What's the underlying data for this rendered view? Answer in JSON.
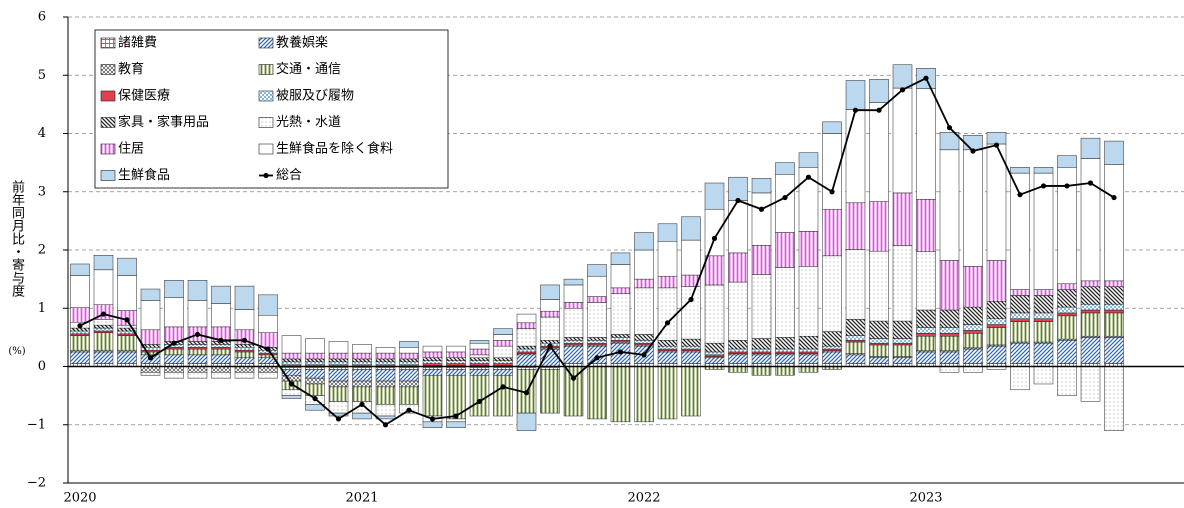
{
  "chart_data": {
    "type": "stacked-bar-line",
    "ylabel": "前年同月比・寄与度",
    "yunit": "(%)",
    "categories": [
      "2020",
      null,
      null,
      null,
      null,
      null,
      null,
      null,
      null,
      null,
      null,
      null,
      "2021",
      null,
      null,
      null,
      null,
      null,
      null,
      null,
      null,
      null,
      null,
      null,
      "2022",
      null,
      null,
      null,
      null,
      null,
      null,
      null,
      null,
      null,
      null,
      null,
      "2023",
      null,
      null,
      null,
      null,
      null,
      null,
      null,
      null
    ],
    "ylim": [
      -2,
      6
    ],
    "yticks": [
      {
        "value": -2,
        "label": "−2"
      },
      {
        "value": -1,
        "label": "−1"
      },
      0,
      1,
      2,
      3,
      4,
      5,
      6
    ],
    "grid": true,
    "legend": "top-left",
    "series": [
      {
        "name": "諸雑費",
        "color": "#d85070",
        "pattern": "grid",
        "values": [
          0.05,
          0.05,
          0.05,
          0.05,
          0.05,
          0.05,
          0.05,
          0.05,
          0.05,
          -0.05,
          -0.05,
          -0.05,
          -0.05,
          -0.05,
          -0.05,
          -0.05,
          -0.05,
          -0.05,
          -0.05,
          -0.05,
          -0.05,
          0.05,
          0.05,
          0.05,
          0.05,
          0.05,
          0.05,
          0.05,
          0.05,
          0.05,
          0.05,
          0.05,
          0.05,
          0.05,
          0.05,
          0.05,
          0.05,
          0.05,
          0.05,
          0.05,
          0.05,
          0.05,
          0.05,
          0.05,
          0.05
        ]
      },
      {
        "name": "教養娯楽",
        "color": "#2f66aa",
        "pattern": "diag",
        "values": [
          0.2,
          0.2,
          0.2,
          0.15,
          0.15,
          0.15,
          0.15,
          0.1,
          0.1,
          -0.1,
          -0.15,
          -0.2,
          -0.2,
          -0.2,
          -0.2,
          -0.1,
          -0.1,
          -0.1,
          -0.1,
          0.2,
          0.3,
          0.3,
          0.3,
          0.35,
          0.3,
          0.2,
          0.2,
          0.1,
          0.15,
          0.15,
          0.15,
          0.15,
          0.2,
          0.15,
          0.1,
          0.1,
          0.2,
          0.2,
          0.25,
          0.3,
          0.35,
          0.35,
          0.4,
          0.45,
          0.45
        ]
      },
      {
        "name": "教育",
        "color": "#333333",
        "pattern": "cross",
        "values": [
          0.03,
          0.03,
          0.03,
          -0.1,
          -0.1,
          -0.1,
          -0.1,
          -0.1,
          -0.1,
          -0.1,
          -0.1,
          -0.1,
          -0.1,
          -0.1,
          -0.1,
          0.02,
          0.02,
          0.02,
          0.02,
          0.02,
          0.02,
          0.02,
          0.02,
          0.02,
          0.02,
          0.02,
          0.02,
          0.02,
          0.02,
          0.02,
          0.02,
          0.02,
          0.02,
          0.02,
          0.02,
          0.02,
          0.02,
          0.02,
          0.02,
          0.02,
          0.02,
          0.02,
          0.02,
          0.02,
          0.02
        ]
      },
      {
        "name": "交通・通信",
        "color": "#5f7f20",
        "pattern": "vstripe",
        "values": [
          0.25,
          0.3,
          0.25,
          0.05,
          0.1,
          0.1,
          0.1,
          0.1,
          0.05,
          -0.15,
          -0.2,
          -0.25,
          -0.25,
          -0.3,
          -0.3,
          -0.7,
          -0.75,
          -0.7,
          -0.7,
          -0.75,
          -0.75,
          -0.85,
          -0.9,
          -0.95,
          -0.95,
          -0.9,
          -0.85,
          -0.05,
          -0.1,
          -0.15,
          -0.15,
          -0.1,
          -0.05,
          0.2,
          0.2,
          0.2,
          0.25,
          0.25,
          0.25,
          0.3,
          0.35,
          0.35,
          0.4,
          0.4,
          0.4
        ]
      },
      {
        "name": "保健医療",
        "color": "#e04050",
        "pattern": "solid",
        "values": [
          0.03,
          0.03,
          0.03,
          0.03,
          0.03,
          0.03,
          0.03,
          0.03,
          0.03,
          0.03,
          0.03,
          0.03,
          0.03,
          0.03,
          0.03,
          0.03,
          0.03,
          0.03,
          0.03,
          0.03,
          0.03,
          0.03,
          0.03,
          0.03,
          0.03,
          0.03,
          0.03,
          0.03,
          0.03,
          0.03,
          0.03,
          0.03,
          0.03,
          0.03,
          0.03,
          0.03,
          0.05,
          0.05,
          0.05,
          0.05,
          0.05,
          0.05,
          0.05,
          0.05,
          0.05
        ]
      },
      {
        "name": "被服及び履物",
        "color": "#2b88cc",
        "pattern": "dots",
        "values": [
          0.05,
          0.05,
          0.05,
          0.05,
          0.05,
          0.05,
          0.05,
          0.05,
          0.05,
          0.05,
          0.05,
          0.05,
          0.05,
          0.05,
          0.05,
          0.05,
          0.05,
          0.05,
          0.05,
          0.05,
          0.05,
          0.05,
          0.05,
          0.05,
          0.05,
          0.05,
          0.05,
          0.05,
          0.05,
          0.05,
          0.05,
          0.05,
          0.05,
          0.08,
          0.08,
          0.08,
          0.1,
          0.1,
          0.1,
          0.1,
          0.1,
          0.1,
          0.1,
          0.1,
          0.1
        ]
      },
      {
        "name": "家具・家事用品",
        "color": "#222222",
        "pattern": "bdiag",
        "values": [
          0.05,
          0.05,
          0.05,
          0.05,
          0.05,
          0.05,
          0.05,
          0.05,
          0.05,
          0.05,
          0.05,
          0.05,
          0.05,
          0.05,
          0.05,
          0.05,
          0.05,
          0.05,
          0.05,
          0.05,
          0.05,
          0.05,
          0.05,
          0.05,
          0.1,
          0.1,
          0.12,
          0.15,
          0.15,
          0.18,
          0.2,
          0.22,
          0.25,
          0.28,
          0.3,
          0.3,
          0.3,
          0.3,
          0.3,
          0.3,
          0.3,
          0.3,
          0.3,
          0.3,
          0.3
        ]
      },
      {
        "name": "光熱・水道",
        "color": "#777777",
        "pattern": "sdots",
        "values": [
          0.1,
          0.1,
          0.05,
          -0.05,
          -0.1,
          -0.1,
          -0.1,
          -0.1,
          -0.1,
          -0.1,
          -0.15,
          -0.2,
          -0.2,
          -0.2,
          -0.15,
          -0.1,
          -0.05,
          0.05,
          0.2,
          0.3,
          0.4,
          0.5,
          0.6,
          0.7,
          0.8,
          0.9,
          0.9,
          1.0,
          1.0,
          1.1,
          1.2,
          1.2,
          1.3,
          1.2,
          1.2,
          1.3,
          1.0,
          -0.1,
          -0.1,
          -0.05,
          -0.4,
          -0.3,
          -0.5,
          -0.6,
          -1.1
        ]
      },
      {
        "name": "住居",
        "color": "#e050e0",
        "pattern": "vstripe",
        "values": [
          0.25,
          0.25,
          0.25,
          0.25,
          0.25,
          0.25,
          0.25,
          0.25,
          0.25,
          0.1,
          0.1,
          0.1,
          0.1,
          0.1,
          0.1,
          0.1,
          0.1,
          0.1,
          0.1,
          0.1,
          0.1,
          0.1,
          0.1,
          0.1,
          0.15,
          0.2,
          0.2,
          0.5,
          0.5,
          0.5,
          0.6,
          0.6,
          0.8,
          0.8,
          0.85,
          0.9,
          0.9,
          0.85,
          0.7,
          0.7,
          0.1,
          0.1,
          0.1,
          0.1,
          0.1
        ]
      },
      {
        "name": "生鮮食品を除く食料",
        "color": "#ffffff",
        "pattern": "solid",
        "values": [
          0.55,
          0.6,
          0.6,
          0.5,
          0.5,
          0.45,
          0.4,
          0.35,
          0.3,
          0.3,
          0.25,
          0.2,
          0.15,
          0.1,
          0.1,
          0.1,
          0.1,
          0.1,
          0.1,
          0.15,
          0.2,
          0.3,
          0.35,
          0.4,
          0.5,
          0.6,
          0.6,
          0.8,
          0.9,
          0.9,
          1.0,
          1.1,
          1.3,
          1.6,
          1.7,
          1.8,
          1.9,
          1.9,
          2.0,
          2.0,
          2.0,
          2.0,
          2.0,
          2.1,
          2.0
        ]
      },
      {
        "name": "生鮮食品",
        "color": "#bcd8ee",
        "pattern": "solid",
        "values": [
          0.2,
          0.25,
          0.3,
          0.2,
          0.3,
          0.35,
          0.3,
          0.4,
          0.35,
          -0.05,
          -0.1,
          -0.05,
          -0.1,
          -0.05,
          0.1,
          -0.1,
          -0.1,
          0.05,
          0.1,
          -0.3,
          0.25,
          0.1,
          0.2,
          0.2,
          0.3,
          0.3,
          0.4,
          0.45,
          0.4,
          0.25,
          0.2,
          0.25,
          0.2,
          0.5,
          0.4,
          0.4,
          0.35,
          0.3,
          0.25,
          0.2,
          0.1,
          0.1,
          0.2,
          0.35,
          0.4
        ]
      },
      {
        "name": "総合",
        "color": "#000000",
        "kind": "line",
        "values": [
          0.7,
          0.9,
          0.8,
          0.15,
          0.4,
          0.55,
          0.45,
          0.45,
          0.3,
          -0.3,
          -0.55,
          -0.9,
          -0.65,
          -1.0,
          -0.75,
          -0.9,
          -0.85,
          -0.6,
          -0.35,
          -0.45,
          0.35,
          -0.2,
          0.15,
          0.25,
          0.2,
          0.75,
          1.15,
          2.2,
          2.85,
          2.7,
          2.9,
          3.25,
          3.0,
          4.4,
          4.4,
          4.75,
          4.95,
          4.1,
          3.7,
          3.8,
          2.95,
          3.1,
          3.1,
          3.15,
          2.9
        ]
      }
    ]
  }
}
